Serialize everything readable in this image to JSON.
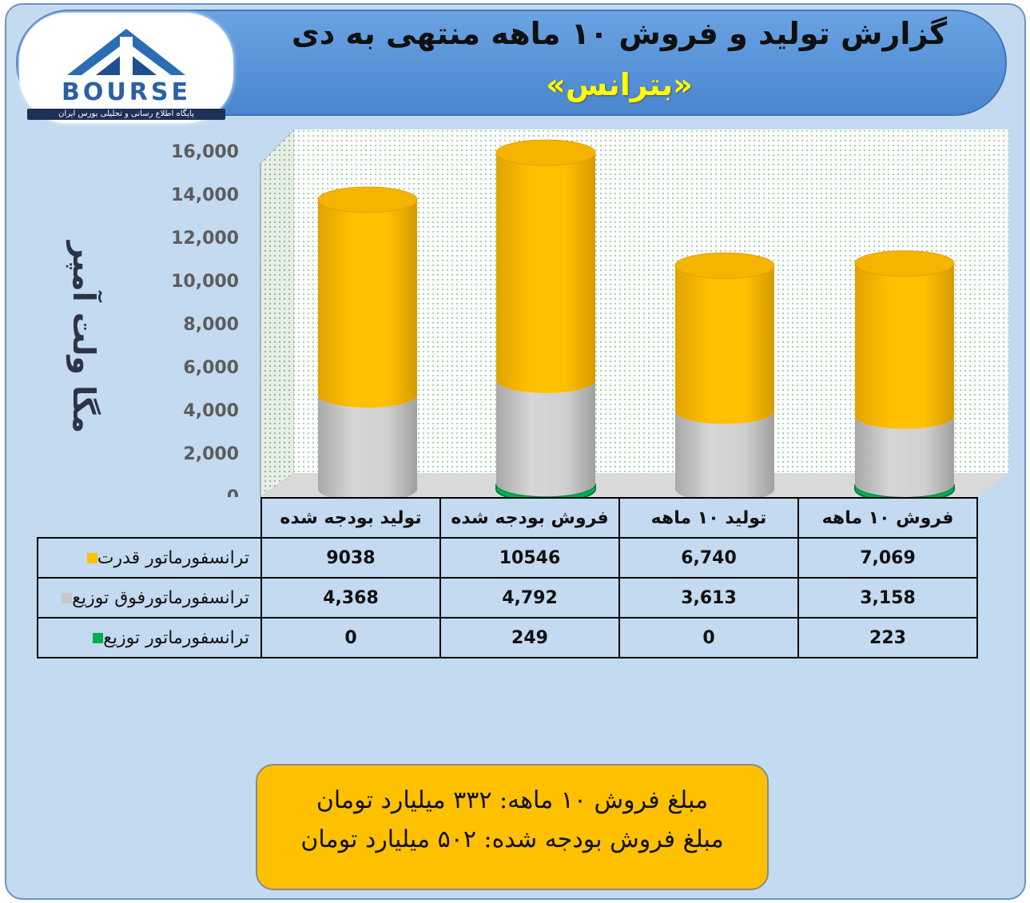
{
  "header": {
    "title": "گزارش تولید و فروش ۱۰ ماهه منتهی به دی",
    "subtitle": "«بترانس»"
  },
  "logo": {
    "text": "BOURSE",
    "subtitle": "پایگاه اطلاع رسانی و تحلیلی بورس ایران"
  },
  "colors": {
    "gold": "#ffc000",
    "gray": "#c8c8c8",
    "green": "#00b050",
    "frame_bg": "#c3daf0",
    "header_bg": "#5b96db"
  },
  "chart_data": {
    "type": "bar",
    "stacked": true,
    "ylabel": "مگا ولت آمپر",
    "ylim": [
      0,
      16000
    ],
    "yticks": [
      "16,000",
      "14,000",
      "12,000",
      "10,000",
      "8,000",
      "6,000",
      "4,000",
      "2,000",
      "0"
    ],
    "categories": [
      "تولید بودجه شده",
      "فروش بودجه شده",
      "تولید ۱۰ ماهه",
      "فروش ۱۰ ماهه"
    ],
    "series": [
      {
        "name": "ترانسفورماتور قدرت",
        "color": "#ffc000",
        "values": [
          9038,
          10546,
          6740,
          7069
        ],
        "labels": [
          "9038",
          "10546",
          "6,740",
          "7,069"
        ]
      },
      {
        "name": "ترانسفورماتورفوق توزیع",
        "color": "#c8c8c8",
        "values": [
          4368,
          4792,
          3613,
          3158
        ],
        "labels": [
          "4,368",
          "4,792",
          "3,613",
          "3,158"
        ]
      },
      {
        "name": "ترانسفورماتور توزیع",
        "color": "#00b050",
        "values": [
          0,
          249,
          0,
          223
        ],
        "labels": [
          "0",
          "249",
          "0",
          "223"
        ]
      }
    ],
    "grid": false,
    "legend": "table-left"
  },
  "summary": {
    "line1": "مبلغ فروش ۱۰ ماهه: ۳۳۲ میلیارد تومان",
    "line2": "مبلغ فروش بودجه شده: ۵۰۲ میلیارد تومان"
  }
}
